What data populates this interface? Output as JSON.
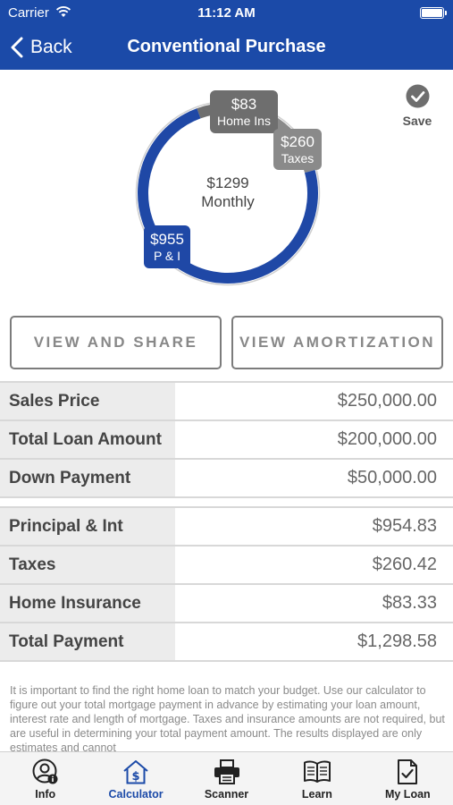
{
  "status_bar": {
    "carrier": "Carrier",
    "time": "11:12 AM"
  },
  "nav": {
    "back_label": "Back",
    "title": "Conventional Purchase"
  },
  "chart_data": {
    "type": "pie",
    "style": "donut",
    "center_amount": "$1299",
    "center_label": "Monthly",
    "slices": [
      {
        "label": "P & I",
        "amount": "$955",
        "value": 955,
        "color": "#1f48a6"
      },
      {
        "label": "Taxes",
        "amount": "$260",
        "value": 260,
        "color": "#8a8a8a"
      },
      {
        "label": "Home Ins",
        "amount": "$83",
        "value": 83,
        "color": "#6e6e6e"
      }
    ]
  },
  "save": {
    "label": "Save"
  },
  "buttons": {
    "view_share": "VIEW AND SHARE",
    "view_amortization": "VIEW AMORTIZATION"
  },
  "loan_table": [
    {
      "label": "Sales Price",
      "value": "$250,000.00"
    },
    {
      "label": "Total Loan Amount",
      "value": "$200,000.00"
    },
    {
      "label": "Down Payment",
      "value": "$50,000.00"
    }
  ],
  "payment_table": [
    {
      "label": "Principal & Int",
      "value": "$954.83"
    },
    {
      "label": "Taxes",
      "value": "$260.42"
    },
    {
      "label": "Home Insurance",
      "value": "$83.33"
    },
    {
      "label": "Total Payment",
      "value": "$1,298.58"
    }
  ],
  "disclaimer": "It is important to find the right home loan to match your budget. Use our calculator to figure out your total mortgage payment in advance by estimating your loan amount, interest rate and length of mortgage. Taxes and insurance amounts are not required, but are useful in determining your total payment amount. The results displayed are only estimates and cannot",
  "tabs": [
    {
      "label": "Info",
      "icon": "person-info-icon"
    },
    {
      "label": "Calculator",
      "icon": "house-dollar-icon",
      "active": true
    },
    {
      "label": "Scanner",
      "icon": "printer-icon"
    },
    {
      "label": "Learn",
      "icon": "book-icon"
    },
    {
      "label": "My Loan",
      "icon": "document-check-icon"
    }
  ]
}
